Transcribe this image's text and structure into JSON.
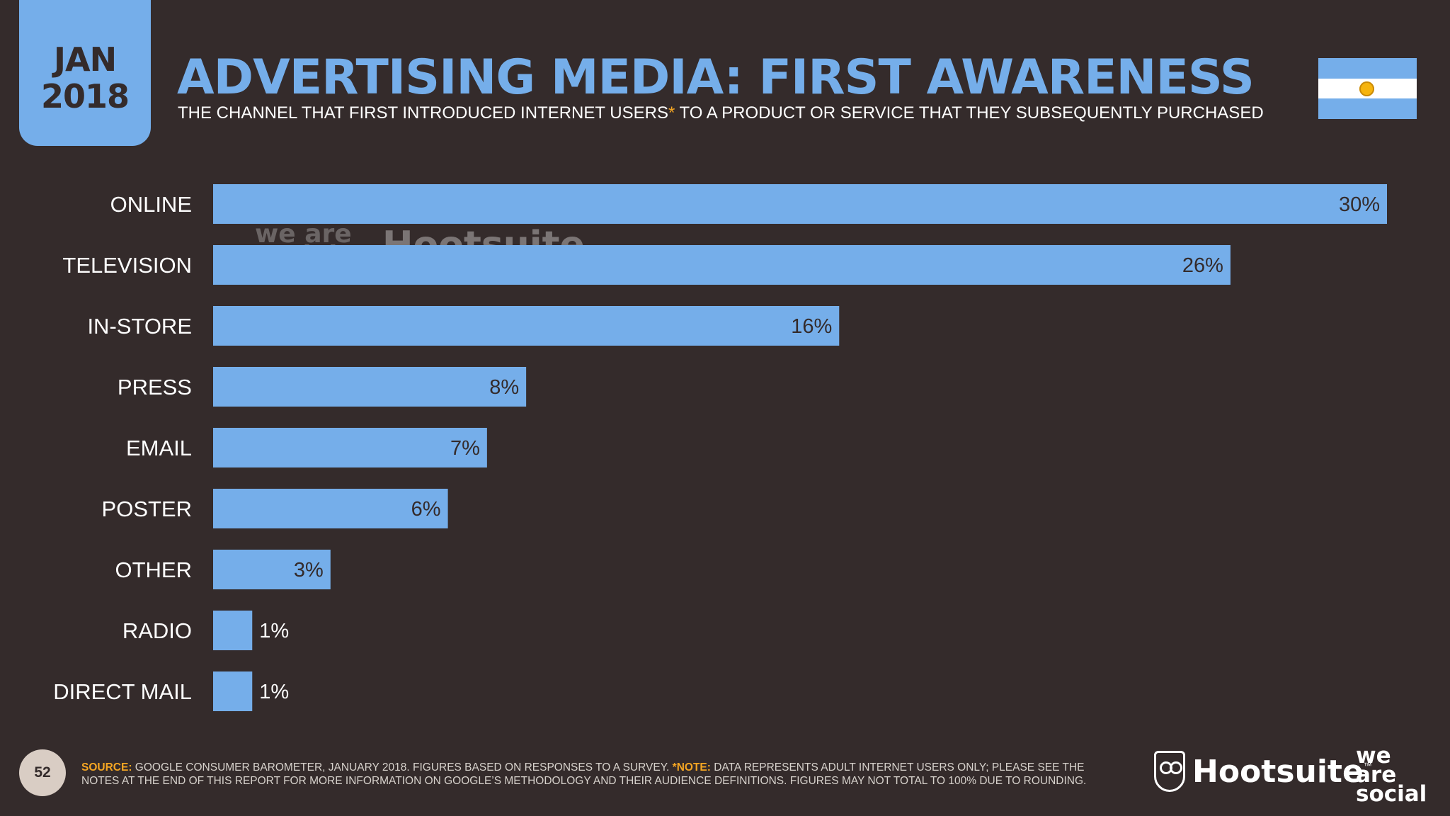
{
  "header": {
    "month": "JAN",
    "year": "2018",
    "title": "ADVERTISING MEDIA: FIRST AWARENESS",
    "subtitle_before": "THE CHANNEL THAT FIRST INTRODUCED INTERNET USERS",
    "subtitle_star": "*",
    "subtitle_after": " TO A PRODUCT OR SERVICE THAT THEY SUBSEQUENTLY PURCHASED"
  },
  "flag": {
    "country": "Argentina",
    "colors": {
      "band": "#75aeea",
      "center": "#ffffff",
      "sun": "#f6b40e"
    }
  },
  "watermark": {
    "left": "we are social",
    "right": "Hootsuite"
  },
  "chart_data": {
    "type": "bar",
    "orientation": "horizontal",
    "categories": [
      "ONLINE",
      "TELEVISION",
      "IN-STORE",
      "PRESS",
      "EMAIL",
      "POSTER",
      "OTHER",
      "RADIO",
      "DIRECT MAIL"
    ],
    "values": [
      30,
      26,
      16,
      8,
      7,
      6,
      3,
      1,
      1
    ],
    "value_labels": [
      "30%",
      "26%",
      "16%",
      "8%",
      "7%",
      "6%",
      "3%",
      "1%",
      "1%"
    ],
    "unit": "%",
    "xlim": [
      0,
      30
    ],
    "grid": false,
    "legend": "none",
    "bar_color": "#75aeea"
  },
  "footer": {
    "page_number": "52",
    "source_label": "SOURCE:",
    "source_text": " GOOGLE CONSUMER BAROMETER, JANUARY 2018. FIGURES BASED ON RESPONSES TO A SURVEY. ",
    "note_label": "*NOTE:",
    "note_text": " DATA REPRESENTS ADULT INTERNET USERS ONLY; PLEASE SEE THE NOTES AT THE END OF THIS REPORT FOR MORE INFORMATION ON GOOGLE’S METHODOLOGY AND THEIR AUDIENCE DEFINITIONS. FIGURES MAY NOT TOTAL TO 100% DUE TO ROUNDING.",
    "hootsuite_logo": "Hootsuite",
    "trademark": "™",
    "was_logo": [
      "we",
      "are",
      "social"
    ]
  },
  "colors": {
    "background": "#342b2b",
    "accent": "#75aeea",
    "highlight": "#f5a623"
  }
}
